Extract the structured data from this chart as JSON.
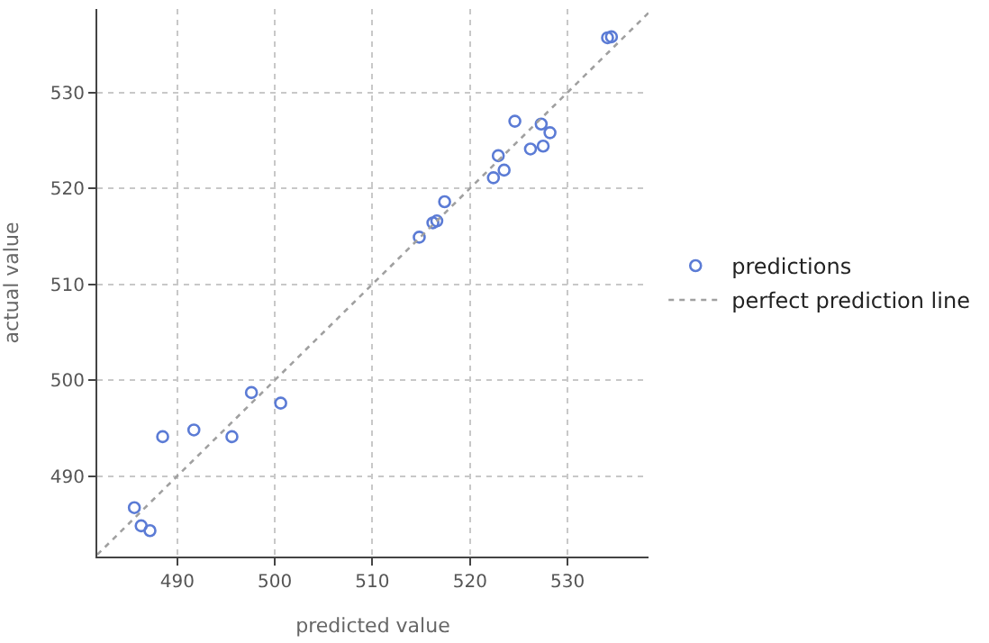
{
  "chart_data": {
    "type": "scatter",
    "xlabel": "predicted value",
    "ylabel": "actual value",
    "xlim": [
      481.8,
      538.3
    ],
    "ylim": [
      481.6,
      538.7
    ],
    "xticks": [
      490,
      500,
      510,
      520,
      530
    ],
    "yticks": [
      490,
      500,
      510,
      520,
      530
    ],
    "grid": true,
    "legend": "right",
    "marker": "circle",
    "series": [
      {
        "name": "predictions",
        "color": "#5b7bd5",
        "x": [
          534.1,
          534.5,
          524.6,
          527.3,
          528.2,
          527.5,
          526.2,
          522.9,
          523.5,
          522.4,
          517.4,
          516.6,
          516.2,
          514.8,
          497.6,
          500.6,
          491.7,
          488.5,
          495.6,
          485.6,
          486.3,
          487.2
        ],
        "values": [
          535.7,
          535.8,
          527.0,
          526.7,
          525.8,
          524.4,
          524.1,
          523.4,
          521.9,
          521.1,
          518.6,
          516.6,
          516.4,
          514.9,
          498.7,
          497.6,
          494.8,
          494.1,
          494.1,
          486.7,
          484.8,
          484.3
        ]
      },
      {
        "name": "perfect prediction line",
        "type": "line",
        "color": "#a0a0a0",
        "line_style": "dotted",
        "marker": "none",
        "x": [
          481.8,
          538.3
        ],
        "values": [
          481.8,
          538.3
        ]
      }
    ]
  }
}
